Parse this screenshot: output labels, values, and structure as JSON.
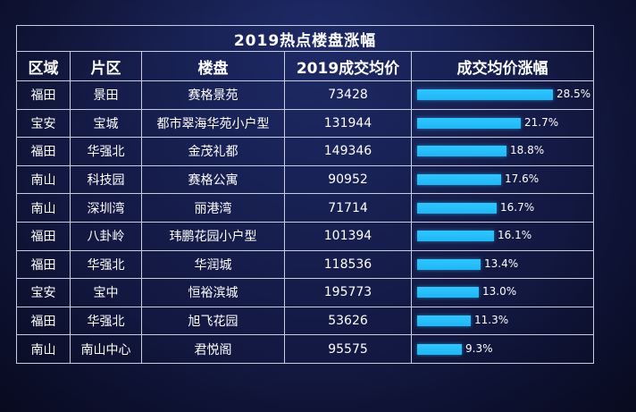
{
  "title": "2019热点楼盘涨幅",
  "columns": [
    "区域",
    "片区",
    "楼盘",
    "2019成交均价",
    "成交均价涨幅"
  ],
  "colors": {
    "bar": "#1fb6f5",
    "grid": "#c9cde0",
    "background": "#161c4a"
  },
  "chart_data": {
    "type": "table",
    "title": "2019热点楼盘涨幅",
    "xlabel": "",
    "ylabel": "",
    "bar_max": 28.5,
    "rows": [
      {
        "district": "福田",
        "area": "景田",
        "estate": "赛格景苑",
        "price": "73428",
        "growth": 28.5,
        "growth_label": "28.5%"
      },
      {
        "district": "宝安",
        "area": "宝城",
        "estate": "都市翠海华苑小户型",
        "price": "131944",
        "growth": 21.7,
        "growth_label": "21.7%"
      },
      {
        "district": "福田",
        "area": "华强北",
        "estate": "金茂礼都",
        "price": "149346",
        "growth": 18.8,
        "growth_label": "18.8%"
      },
      {
        "district": "南山",
        "area": "科技园",
        "estate": "赛格公寓",
        "price": "90952",
        "growth": 17.6,
        "growth_label": "17.6%"
      },
      {
        "district": "南山",
        "area": "深圳湾",
        "estate": "丽港湾",
        "price": "71714",
        "growth": 16.7,
        "growth_label": "16.7%"
      },
      {
        "district": "福田",
        "area": "八卦岭",
        "estate": "玮鹏花园小户型",
        "price": "101394",
        "growth": 16.1,
        "growth_label": "16.1%"
      },
      {
        "district": "福田",
        "area": "华强北",
        "estate": "华润城",
        "price": "118536",
        "growth": 13.4,
        "growth_label": "13.4%"
      },
      {
        "district": "宝安",
        "area": "宝中",
        "estate": "恒裕滨城",
        "price": "195773",
        "growth": 13.0,
        "growth_label": "13.0%"
      },
      {
        "district": "福田",
        "area": "华强北",
        "estate": "旭飞花园",
        "price": "53626",
        "growth": 11.3,
        "growth_label": "11.3%"
      },
      {
        "district": "南山",
        "area": "南山中心",
        "estate": "君悦阁",
        "price": "95575",
        "growth": 9.3,
        "growth_label": "9.3%"
      }
    ]
  }
}
